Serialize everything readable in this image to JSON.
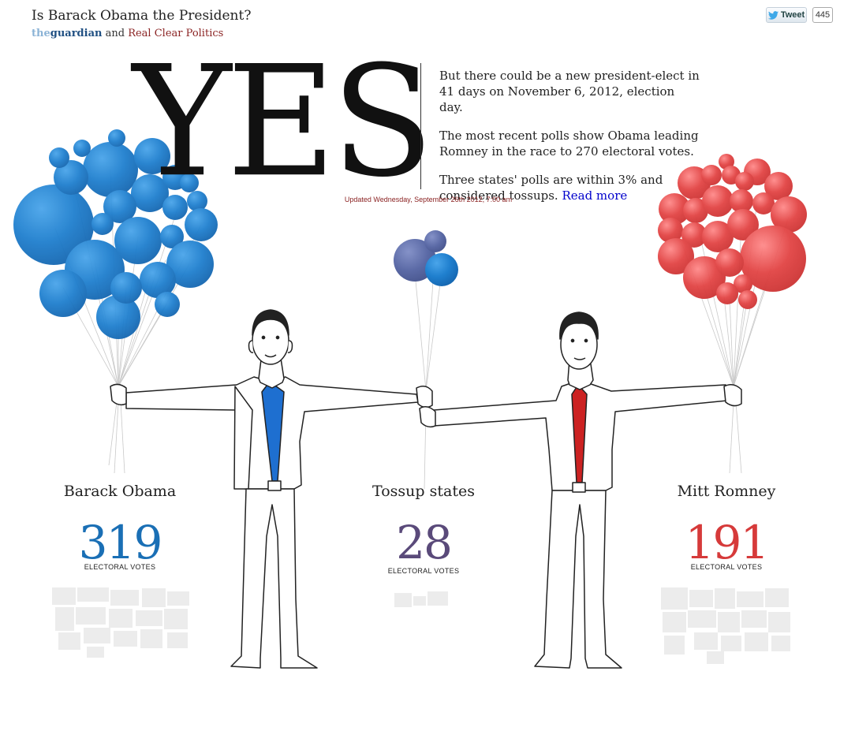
{
  "header": {
    "title": "Is Barack Obama the President?",
    "brand_the": "the",
    "brand_guardian": "guardian",
    "byline_and": "and",
    "byline_partner": "Real Clear Politics"
  },
  "share": {
    "tweet_label": "Tweet",
    "tweet_count": "445",
    "icon": "twitter-bird-icon"
  },
  "hero": {
    "answer": "YES",
    "para1": "But there could be a new president-elect in 41 days on November 6, 2012, election day.",
    "para2": "The most recent polls show Obama leading Romney in the race to 270 electoral votes.",
    "para3": "Three states' polls are within 3% and considered tossups.",
    "read_more": "Read more",
    "updated": "Updated Wednesday, September 26th 2012, 7:00 am"
  },
  "candidates": [
    {
      "name": "Barack Obama",
      "votes": "319",
      "label": "ELECTORAL VOTES",
      "color": "#1a6fb5"
    },
    {
      "name": "Tossup states",
      "votes": "28",
      "label": "ELECTORAL VOTES",
      "color": "#5a4a7a"
    },
    {
      "name": "Mitt Romney",
      "votes": "191",
      "label": "ELECTORAL VOTES",
      "color": "#d63a3a"
    }
  ],
  "colors": {
    "obama_balloon": "#1f7fce",
    "tossup_balloon": "#5b6aa6",
    "romney_balloon": "#e24444",
    "obama_tie": "#1e6fd0",
    "romney_tie": "#cc2222",
    "map_silhouette": "#ececec"
  }
}
